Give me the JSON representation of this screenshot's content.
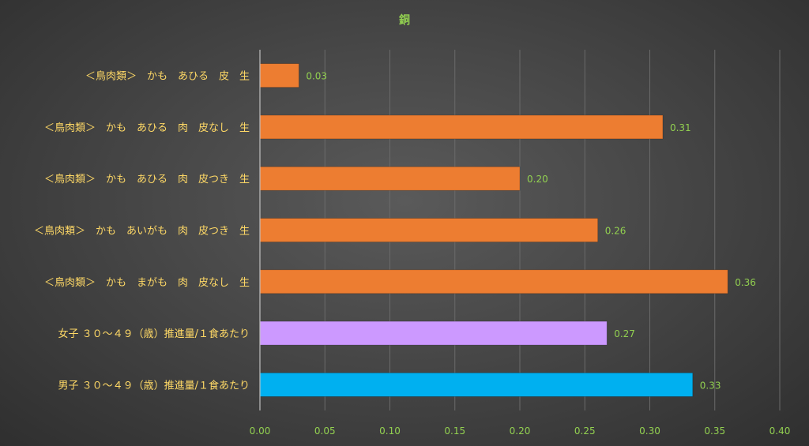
{
  "chart_data": {
    "type": "bar",
    "orientation": "horizontal",
    "title": "銅",
    "xlabel": "",
    "ylabel": "",
    "xlim": [
      0,
      0.4
    ],
    "ticks": [
      "0.00",
      "0.05",
      "0.10",
      "0.15",
      "0.20",
      "0.25",
      "0.30",
      "0.35",
      "0.40"
    ],
    "grid": true,
    "legend": "none",
    "categories": [
      "＜鳥肉類＞　かも　あひる　皮　生",
      "＜鳥肉類＞　かも　あひる　肉　皮なし　生",
      "＜鳥肉類＞　かも　あひる　肉　皮つき　生",
      "＜鳥肉類＞　かも　あいがも　肉　皮つき　生",
      "＜鳥肉類＞　かも　まがも　肉　皮なし　生",
      "女子 ３０～４９（歳）推進量/１食あたり",
      "男子 ３０～４９（歳）推進量/１食あたり"
    ],
    "values": [
      0.03,
      0.31,
      0.2,
      0.26,
      0.36,
      0.267,
      0.333
    ],
    "value_labels": [
      "0.03",
      "0.31",
      "0.20",
      "0.26",
      "0.36",
      "0.27",
      "0.33"
    ],
    "colors": [
      "#ed7d31",
      "#ed7d31",
      "#ed7d31",
      "#ed7d31",
      "#ed7d31",
      "#cc99ff",
      "#00b0f0"
    ]
  }
}
